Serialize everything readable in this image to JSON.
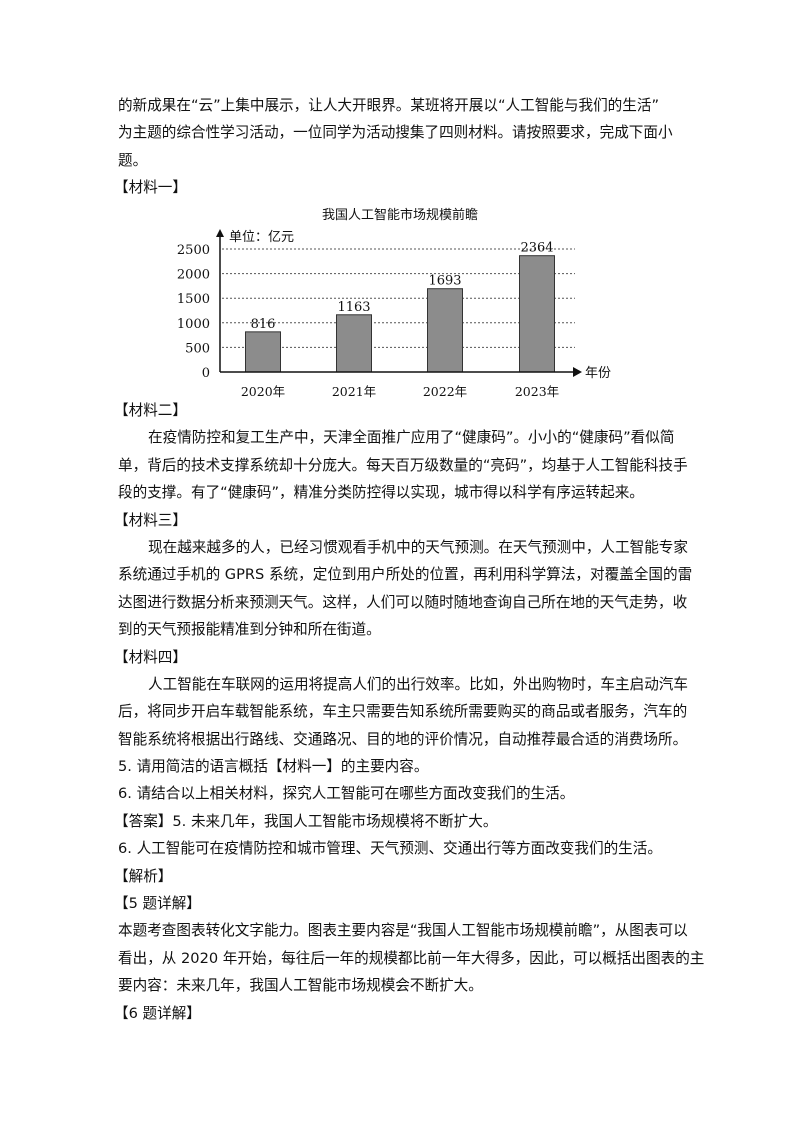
{
  "intro": [
    "的新成果在“云”上集中展示，让人大开眼界。某班将开展以“人工智能与我们的生活”",
    "为主题的综合性学习活动，一位同学为活动搜集了四则材料。请按照要求，完成下面小",
    "题。"
  ],
  "material1_heading": "【材料一】",
  "chart_data": {
    "type": "bar",
    "title": "我国人工智能市场规模前瞻",
    "unit_label": "单位：亿元",
    "xlabel": "年份",
    "categories": [
      "2020年",
      "2021年",
      "2022年",
      "2023年"
    ],
    "values": [
      816,
      1163,
      1693,
      2364
    ],
    "yticks": [
      0,
      500,
      1000,
      1500,
      2000,
      2500
    ],
    "ylim": [
      0,
      2500
    ],
    "grid": "dotted horizontal",
    "bar_color": "#8c8c8c"
  },
  "material2": {
    "heading": "【材料二】",
    "lines": [
      "在疫情防控和复工生产中，天津全面推广应用了“健康码”。小小的“健康码”看似简",
      "单，背后的技术支撑系统却十分庞大。每天百万级数量的“亮码”，均基于人工智能科技手",
      "段的支撑。有了“健康码”，精准分类防控得以实现，城市得以科学有序运转起来。"
    ]
  },
  "material3": {
    "heading": "【材料三】",
    "lines": [
      "现在越来越多的人，已经习惯观看手机中的天气预测。在天气预测中，人工智能专家",
      "系统通过手机的 GPRS 系统，定位到用户所处的位置，再利用科学算法，对覆盖全国的雷",
      "达图进行数据分析来预测天气。这样，人们可以随时随地查询自己所在地的天气走势，收",
      "到的天气预报能精准到分钟和所在街道。"
    ]
  },
  "material4": {
    "heading": "【材料四】",
    "lines": [
      "人工智能在车联网的运用将提高人们的出行效率。比如，外出购物时，车主启动汽车",
      "后，将同步开启车载智能系统，车主只需要告知系统所需要购买的商品或者服务，汽车的",
      "智能系统将根据出行路线、交通路况、目的地的评价情况，自动推荐最合适的消费场所。"
    ]
  },
  "questions": [
    "5. 请用简洁的语言概括【材料一】的主要内容。",
    "6. 请结合以上相关材料，探究人工智能可在哪些方面改变我们的生活。"
  ],
  "answer": [
    "【答案】5. 未来几年，我国人工智能市场规模将不断扩大。",
    "6. 人工智能可在疫情防控和城市管理、天气预测、交通出行等方面改变我们的生活。"
  ],
  "analysis_heading": "【解析】",
  "q5_detail": {
    "heading": "【5 题详解】",
    "lines": [
      "本题考查图表转化文字能力。图表主要内容是“我国人工智能市场规模前瞻”，从图表可以",
      "看出，从 2020 年开始，每往后一年的规模都比前一年大得多，因此，可以概括出图表的主",
      "要内容：未来几年，我国人工智能市场规模会不断扩大。"
    ]
  },
  "q6_detail_heading": "【6 题详解】"
}
